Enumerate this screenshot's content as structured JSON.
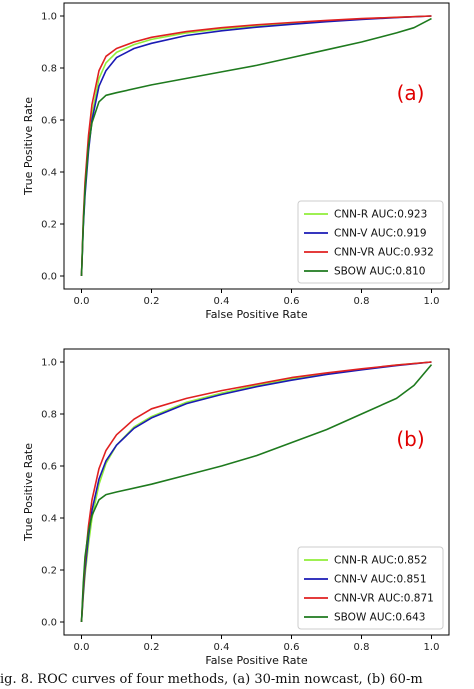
{
  "chart_data": [
    {
      "type": "line",
      "panel_label": "(a)",
      "xlabel": "False Positive Rate",
      "ylabel": "True Positive Rate",
      "xlim": [
        0,
        1
      ],
      "ylim": [
        0,
        1
      ],
      "xticks": [
        "0.0",
        "0.2",
        "0.4",
        "0.6",
        "0.8",
        "1.0"
      ],
      "yticks": [
        "0.0",
        "0.2",
        "0.4",
        "0.6",
        "0.8",
        "1.0"
      ],
      "grid": false,
      "legend_position": "lower-right",
      "series": [
        {
          "name": "CNN-R AUC:0.923",
          "color": "#90ee3a",
          "x": [
            0,
            0.005,
            0.01,
            0.02,
            0.03,
            0.05,
            0.07,
            0.1,
            0.15,
            0.2,
            0.3,
            0.4,
            0.5,
            0.6,
            0.7,
            0.8,
            0.9,
            1.0
          ],
          "y": [
            0,
            0.2,
            0.33,
            0.5,
            0.62,
            0.76,
            0.82,
            0.86,
            0.89,
            0.91,
            0.935,
            0.95,
            0.962,
            0.972,
            0.981,
            0.989,
            0.995,
            1.0
          ]
        },
        {
          "name": "CNN-V AUC:0.919",
          "color": "#1a1ab4",
          "x": [
            0,
            0.005,
            0.01,
            0.02,
            0.03,
            0.05,
            0.07,
            0.1,
            0.15,
            0.2,
            0.3,
            0.4,
            0.5,
            0.6,
            0.7,
            0.8,
            0.9,
            1.0
          ],
          "y": [
            0,
            0.19,
            0.31,
            0.48,
            0.6,
            0.73,
            0.79,
            0.84,
            0.875,
            0.895,
            0.925,
            0.943,
            0.957,
            0.968,
            0.978,
            0.987,
            0.994,
            1.0
          ]
        },
        {
          "name": "CNN-VR AUC:0.932",
          "color": "#e02020",
          "x": [
            0,
            0.005,
            0.01,
            0.02,
            0.03,
            0.05,
            0.07,
            0.1,
            0.15,
            0.2,
            0.3,
            0.4,
            0.5,
            0.6,
            0.7,
            0.8,
            0.9,
            1.0
          ],
          "y": [
            0,
            0.22,
            0.36,
            0.54,
            0.66,
            0.79,
            0.845,
            0.875,
            0.9,
            0.918,
            0.94,
            0.955,
            0.966,
            0.975,
            0.983,
            0.99,
            0.995,
            1.0
          ]
        },
        {
          "name": "SBOW AUC:0.810",
          "color": "#1e7a1e",
          "x": [
            0,
            0.005,
            0.01,
            0.02,
            0.03,
            0.05,
            0.07,
            0.1,
            0.2,
            0.3,
            0.4,
            0.5,
            0.6,
            0.7,
            0.8,
            0.9,
            0.95,
            1.0
          ],
          "y": [
            0,
            0.2,
            0.33,
            0.5,
            0.59,
            0.67,
            0.695,
            0.705,
            0.735,
            0.76,
            0.785,
            0.81,
            0.84,
            0.87,
            0.9,
            0.935,
            0.955,
            0.99
          ]
        }
      ]
    },
    {
      "type": "line",
      "panel_label": "(b)",
      "xlabel": "False Positive Rate",
      "ylabel": "True Positive Rate",
      "xlim": [
        0,
        1
      ],
      "ylim": [
        0,
        1
      ],
      "xticks": [
        "0.0",
        "0.2",
        "0.4",
        "0.6",
        "0.8",
        "1.0"
      ],
      "yticks": [
        "0.0",
        "0.2",
        "0.4",
        "0.6",
        "0.8",
        "1.0"
      ],
      "grid": false,
      "legend_position": "lower-right",
      "series": [
        {
          "name": "CNN-R AUC:0.852",
          "color": "#90ee3a",
          "x": [
            0,
            0.005,
            0.01,
            0.02,
            0.03,
            0.05,
            0.07,
            0.1,
            0.15,
            0.2,
            0.3,
            0.4,
            0.5,
            0.6,
            0.7,
            0.8,
            0.9,
            1.0
          ],
          "y": [
            0,
            0.1,
            0.18,
            0.3,
            0.4,
            0.53,
            0.61,
            0.68,
            0.75,
            0.79,
            0.845,
            0.88,
            0.91,
            0.935,
            0.955,
            0.972,
            0.988,
            1.0
          ]
        },
        {
          "name": "CNN-V AUC:0.851",
          "color": "#1a1ab4",
          "x": [
            0,
            0.005,
            0.01,
            0.02,
            0.03,
            0.05,
            0.07,
            0.1,
            0.15,
            0.2,
            0.3,
            0.4,
            0.5,
            0.6,
            0.7,
            0.8,
            0.9,
            1.0
          ],
          "y": [
            0,
            0.11,
            0.2,
            0.33,
            0.43,
            0.55,
            0.62,
            0.68,
            0.745,
            0.785,
            0.84,
            0.875,
            0.905,
            0.93,
            0.952,
            0.97,
            0.986,
            1.0
          ]
        },
        {
          "name": "CNN-VR AUC:0.871",
          "color": "#e02020",
          "x": [
            0,
            0.005,
            0.01,
            0.02,
            0.03,
            0.05,
            0.07,
            0.1,
            0.15,
            0.2,
            0.3,
            0.4,
            0.5,
            0.6,
            0.7,
            0.8,
            0.9,
            1.0
          ],
          "y": [
            0,
            0.13,
            0.23,
            0.37,
            0.47,
            0.59,
            0.66,
            0.72,
            0.78,
            0.82,
            0.86,
            0.89,
            0.915,
            0.94,
            0.958,
            0.974,
            0.988,
            1.0
          ]
        },
        {
          "name": "SBOW AUC:0.643",
          "color": "#1e7a1e",
          "x": [
            0,
            0.005,
            0.01,
            0.02,
            0.03,
            0.05,
            0.07,
            0.1,
            0.2,
            0.3,
            0.4,
            0.5,
            0.6,
            0.7,
            0.8,
            0.9,
            0.95,
            1.0
          ],
          "y": [
            0,
            0.15,
            0.25,
            0.35,
            0.41,
            0.47,
            0.49,
            0.5,
            0.53,
            0.565,
            0.6,
            0.64,
            0.69,
            0.74,
            0.8,
            0.86,
            0.91,
            0.99
          ]
        }
      ]
    }
  ],
  "caption": "ig. 8.    ROC curves of four methods, (a) 30-min nowcast, (b) 60-m"
}
